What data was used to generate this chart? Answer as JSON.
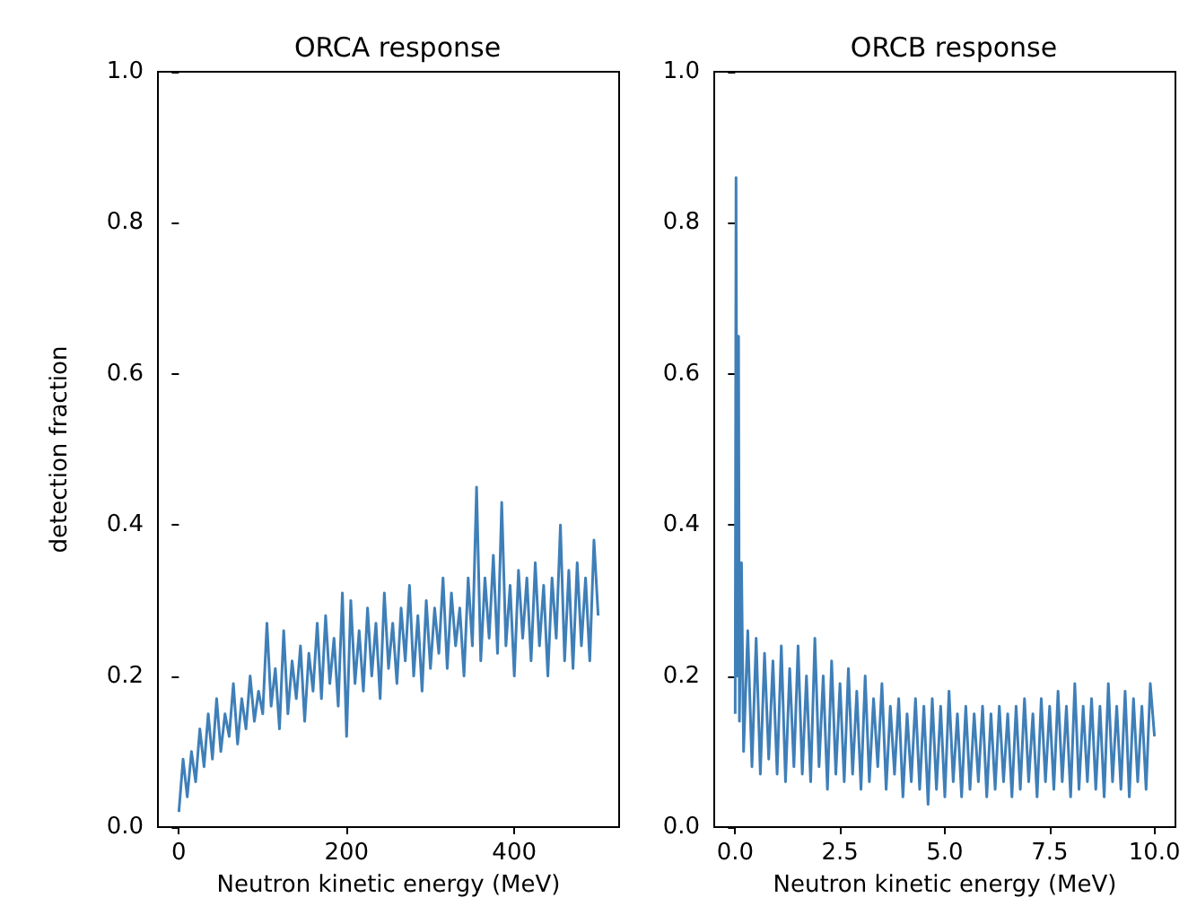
{
  "chart_data": [
    {
      "type": "line",
      "title": "ORCA response",
      "xlabel": "Neutron kinetic energy (MeV)",
      "ylabel": "detection fraction",
      "xlim": [
        -25,
        525
      ],
      "ylim": [
        0,
        1
      ],
      "xticks": [
        0,
        200,
        400
      ],
      "yticks": [
        {
          "value": 0,
          "label": "0.0"
        },
        {
          "value": 0.2,
          "label": "0.2"
        },
        {
          "value": 0.4,
          "label": "0.4"
        },
        {
          "value": 0.6,
          "label": "0.6"
        },
        {
          "value": 0.8,
          "label": "0.8"
        },
        {
          "value": 1,
          "label": "1.0"
        }
      ],
      "series": [
        {
          "color": "#3f7fb8",
          "x": [
            0,
            5,
            10,
            15,
            20,
            25,
            30,
            35,
            40,
            45,
            50,
            55,
            60,
            65,
            70,
            75,
            80,
            85,
            90,
            95,
            100,
            105,
            110,
            115,
            120,
            125,
            130,
            135,
            140,
            145,
            150,
            155,
            160,
            165,
            170,
            175,
            180,
            185,
            190,
            195,
            200,
            205,
            210,
            215,
            220,
            225,
            230,
            235,
            240,
            245,
            250,
            255,
            260,
            265,
            270,
            275,
            280,
            285,
            290,
            295,
            300,
            305,
            310,
            315,
            320,
            325,
            330,
            335,
            340,
            345,
            350,
            355,
            360,
            365,
            370,
            375,
            380,
            385,
            390,
            395,
            400,
            405,
            410,
            415,
            420,
            425,
            430,
            435,
            440,
            445,
            450,
            455,
            460,
            465,
            470,
            475,
            480,
            485,
            490,
            495,
            500
          ],
          "values": [
            0.02,
            0.09,
            0.04,
            0.1,
            0.06,
            0.13,
            0.08,
            0.15,
            0.09,
            0.17,
            0.1,
            0.15,
            0.12,
            0.19,
            0.11,
            0.17,
            0.13,
            0.2,
            0.14,
            0.18,
            0.15,
            0.27,
            0.16,
            0.21,
            0.13,
            0.26,
            0.15,
            0.22,
            0.17,
            0.24,
            0.14,
            0.23,
            0.18,
            0.27,
            0.17,
            0.28,
            0.19,
            0.25,
            0.16,
            0.31,
            0.12,
            0.3,
            0.19,
            0.26,
            0.18,
            0.29,
            0.2,
            0.27,
            0.17,
            0.31,
            0.21,
            0.27,
            0.19,
            0.29,
            0.22,
            0.32,
            0.2,
            0.28,
            0.18,
            0.3,
            0.21,
            0.29,
            0.23,
            0.33,
            0.21,
            0.31,
            0.24,
            0.29,
            0.2,
            0.33,
            0.24,
            0.45,
            0.22,
            0.33,
            0.25,
            0.36,
            0.23,
            0.43,
            0.24,
            0.32,
            0.2,
            0.34,
            0.25,
            0.33,
            0.22,
            0.35,
            0.24,
            0.32,
            0.2,
            0.33,
            0.25,
            0.4,
            0.22,
            0.34,
            0.21,
            0.35,
            0.24,
            0.33,
            0.22,
            0.38,
            0.28
          ]
        }
      ]
    },
    {
      "type": "line",
      "title": "ORCB response",
      "xlabel": "Neutron kinetic energy (MeV)",
      "xlim": [
        -0.5,
        10.5
      ],
      "ylim": [
        0,
        1
      ],
      "xticks": [
        {
          "value": 0,
          "label": "0.0"
        },
        {
          "value": 2.5,
          "label": "2.5"
        },
        {
          "value": 5,
          "label": "5.0"
        },
        {
          "value": 7.5,
          "label": "7.5"
        },
        {
          "value": 10,
          "label": "10.0"
        }
      ],
      "yticks": [
        {
          "value": 0,
          "label": "0.0"
        },
        {
          "value": 0.2,
          "label": "0.2"
        },
        {
          "value": 0.4,
          "label": "0.4"
        },
        {
          "value": 0.6,
          "label": "0.6"
        },
        {
          "value": 0.8,
          "label": "0.8"
        },
        {
          "value": 1,
          "label": "1.0"
        }
      ],
      "series": [
        {
          "color": "#3f7fb8",
          "x": [
            0,
            0.02,
            0.05,
            0.08,
            0.1,
            0.15,
            0.2,
            0.3,
            0.4,
            0.5,
            0.6,
            0.7,
            0.8,
            0.9,
            1.0,
            1.1,
            1.2,
            1.3,
            1.4,
            1.5,
            1.6,
            1.7,
            1.8,
            1.9,
            2.0,
            2.1,
            2.2,
            2.3,
            2.4,
            2.5,
            2.6,
            2.7,
            2.8,
            2.9,
            3.0,
            3.1,
            3.2,
            3.3,
            3.4,
            3.5,
            3.6,
            3.7,
            3.8,
            3.9,
            4.0,
            4.1,
            4.2,
            4.3,
            4.4,
            4.5,
            4.6,
            4.7,
            4.8,
            4.9,
            5.0,
            5.1,
            5.2,
            5.3,
            5.4,
            5.5,
            5.6,
            5.7,
            5.8,
            5.9,
            6.0,
            6.1,
            6.2,
            6.3,
            6.4,
            6.5,
            6.6,
            6.7,
            6.8,
            6.9,
            7.0,
            7.1,
            7.2,
            7.3,
            7.4,
            7.5,
            7.6,
            7.7,
            7.8,
            7.9,
            8.0,
            8.1,
            8.2,
            8.3,
            8.4,
            8.5,
            8.6,
            8.7,
            8.8,
            8.9,
            9.0,
            9.1,
            9.2,
            9.3,
            9.4,
            9.5,
            9.6,
            9.7,
            9.8,
            9.9,
            10.0
          ],
          "values": [
            0.15,
            0.86,
            0.2,
            0.65,
            0.14,
            0.35,
            0.1,
            0.26,
            0.08,
            0.25,
            0.07,
            0.23,
            0.09,
            0.22,
            0.07,
            0.24,
            0.06,
            0.21,
            0.08,
            0.24,
            0.07,
            0.2,
            0.06,
            0.25,
            0.08,
            0.2,
            0.05,
            0.22,
            0.07,
            0.19,
            0.06,
            0.21,
            0.07,
            0.18,
            0.05,
            0.2,
            0.06,
            0.17,
            0.08,
            0.19,
            0.05,
            0.16,
            0.07,
            0.17,
            0.04,
            0.15,
            0.06,
            0.17,
            0.05,
            0.16,
            0.03,
            0.17,
            0.05,
            0.16,
            0.04,
            0.18,
            0.06,
            0.15,
            0.04,
            0.16,
            0.05,
            0.15,
            0.06,
            0.16,
            0.04,
            0.15,
            0.05,
            0.16,
            0.06,
            0.15,
            0.04,
            0.16,
            0.05,
            0.17,
            0.06,
            0.15,
            0.04,
            0.17,
            0.06,
            0.16,
            0.05,
            0.18,
            0.06,
            0.16,
            0.04,
            0.19,
            0.05,
            0.16,
            0.06,
            0.17,
            0.05,
            0.16,
            0.04,
            0.19,
            0.06,
            0.16,
            0.05,
            0.18,
            0.04,
            0.17,
            0.06,
            0.16,
            0.05,
            0.19,
            0.12
          ]
        }
      ]
    }
  ]
}
